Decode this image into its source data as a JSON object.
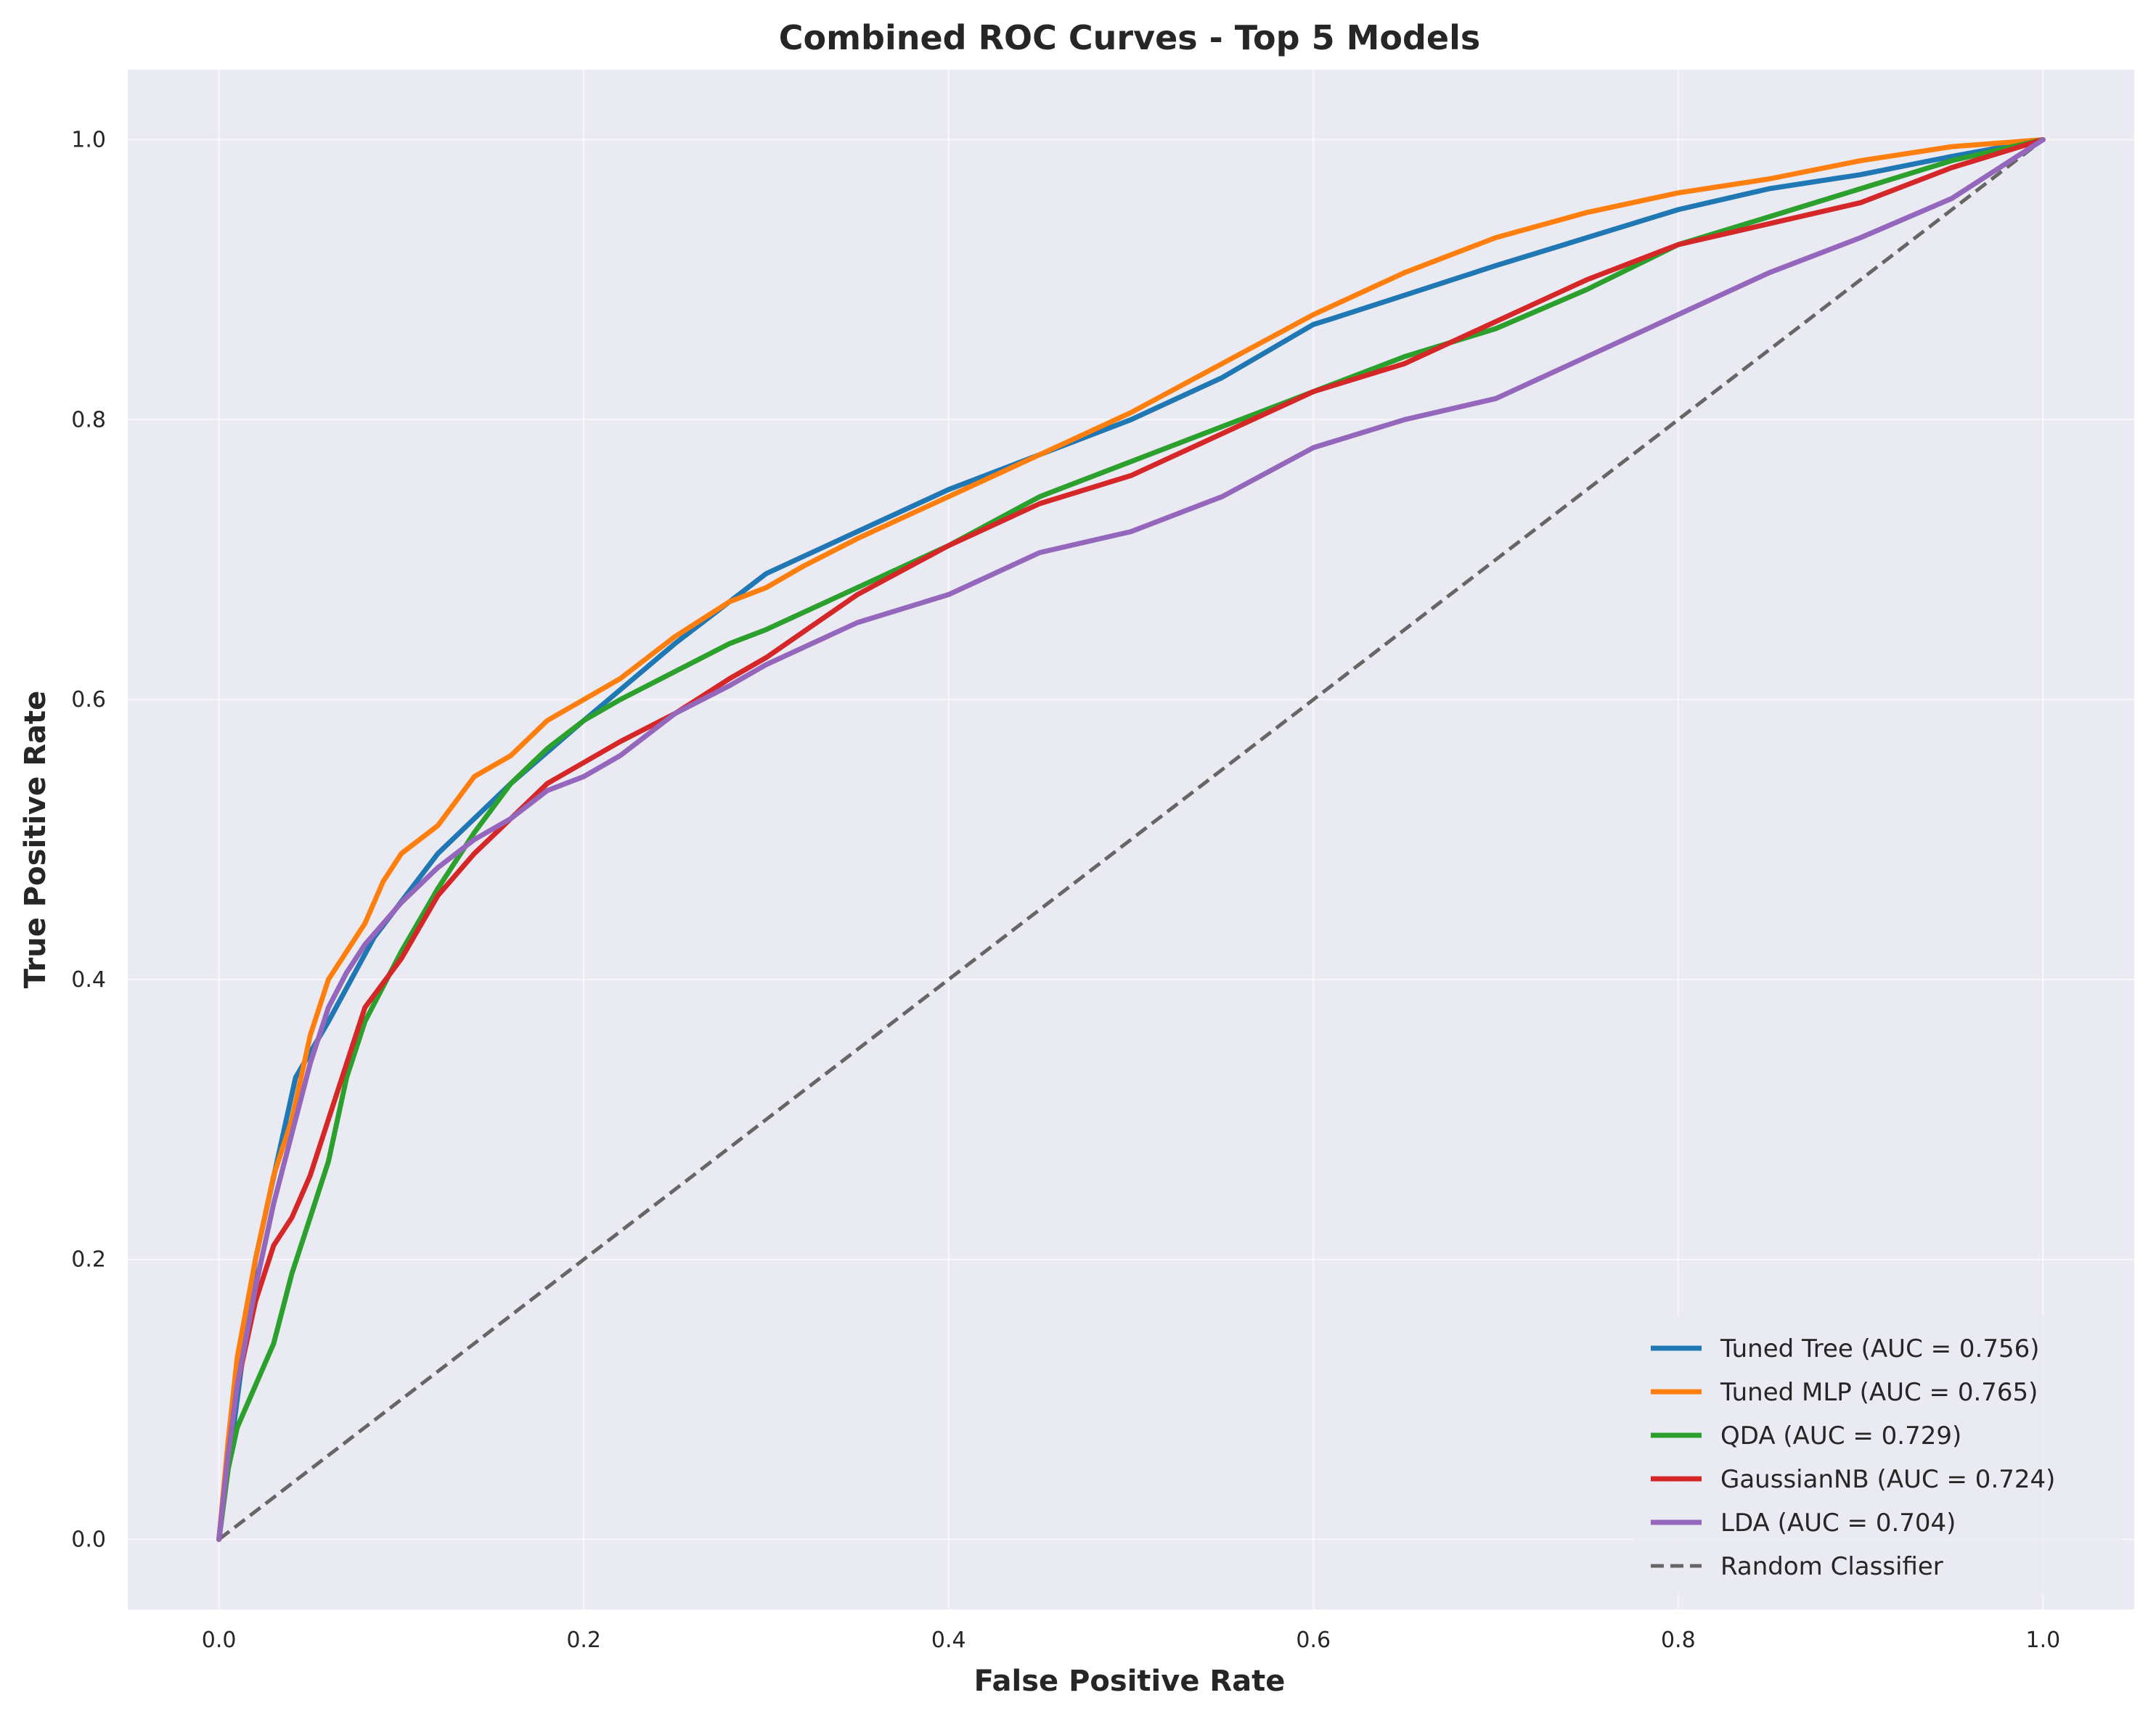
{
  "chart_data": {
    "type": "line",
    "title": "Combined ROC Curves - Top 5 Models",
    "xlabel": "False Positive Rate",
    "ylabel": "True Positive Rate",
    "xlim": [
      -0.05,
      1.05
    ],
    "ylim": [
      -0.05,
      1.05
    ],
    "xticks": [
      0.0,
      0.2,
      0.4,
      0.6,
      0.8,
      1.0
    ],
    "yticks": [
      0.0,
      0.2,
      0.4,
      0.6,
      0.8,
      1.0
    ],
    "xtick_labels": [
      "0.0",
      "0.2",
      "0.4",
      "0.6",
      "0.8",
      "1.0"
    ],
    "ytick_labels": [
      "0.0",
      "0.2",
      "0.4",
      "0.6",
      "0.8",
      "1.0"
    ],
    "grid": true,
    "legend_position": "lower-right",
    "background_color": "#eaeaf2",
    "series": [
      {
        "name": "Tuned Tree (AUC = 0.756)",
        "color": "#1f77b4",
        "style": "solid",
        "x": [
          0.0,
          0.02,
          0.042,
          0.06,
          0.085,
          0.12,
          0.16,
          0.2,
          0.25,
          0.3,
          0.325,
          0.35,
          0.4,
          0.45,
          0.5,
          0.55,
          0.6,
          0.61,
          0.7,
          0.8,
          0.85,
          0.9,
          0.95,
          1.0
        ],
        "y": [
          0.0,
          0.2,
          0.33,
          0.37,
          0.43,
          0.49,
          0.54,
          0.585,
          0.64,
          0.69,
          0.705,
          0.72,
          0.75,
          0.775,
          0.8,
          0.83,
          0.868,
          0.872,
          0.91,
          0.95,
          0.965,
          0.975,
          0.988,
          1.0
        ]
      },
      {
        "name": "Tuned MLP (AUC = 0.765)",
        "color": "#ff7f0e",
        "style": "solid",
        "x": [
          0.0,
          0.005,
          0.01,
          0.02,
          0.03,
          0.04,
          0.05,
          0.06,
          0.07,
          0.08,
          0.09,
          0.1,
          0.12,
          0.14,
          0.16,
          0.18,
          0.2,
          0.22,
          0.25,
          0.28,
          0.3,
          0.32,
          0.35,
          0.4,
          0.45,
          0.5,
          0.55,
          0.6,
          0.65,
          0.7,
          0.75,
          0.8,
          0.85,
          0.9,
          0.95,
          1.0
        ],
        "y": [
          0.0,
          0.07,
          0.13,
          0.2,
          0.26,
          0.3,
          0.36,
          0.4,
          0.42,
          0.44,
          0.47,
          0.49,
          0.51,
          0.545,
          0.56,
          0.585,
          0.6,
          0.615,
          0.645,
          0.67,
          0.68,
          0.695,
          0.715,
          0.745,
          0.775,
          0.805,
          0.84,
          0.875,
          0.905,
          0.93,
          0.948,
          0.962,
          0.972,
          0.985,
          0.995,
          1.0
        ]
      },
      {
        "name": "QDA (AUC = 0.729)",
        "color": "#2ca02c",
        "style": "solid",
        "x": [
          0.0,
          0.005,
          0.01,
          0.02,
          0.03,
          0.04,
          0.05,
          0.06,
          0.07,
          0.08,
          0.1,
          0.12,
          0.14,
          0.16,
          0.18,
          0.2,
          0.22,
          0.25,
          0.28,
          0.3,
          0.35,
          0.4,
          0.45,
          0.5,
          0.55,
          0.6,
          0.65,
          0.7,
          0.75,
          0.8,
          0.85,
          0.9,
          0.95,
          1.0
        ],
        "y": [
          0.0,
          0.05,
          0.08,
          0.11,
          0.14,
          0.19,
          0.23,
          0.27,
          0.33,
          0.37,
          0.42,
          0.465,
          0.505,
          0.54,
          0.565,
          0.585,
          0.6,
          0.62,
          0.64,
          0.65,
          0.68,
          0.71,
          0.745,
          0.77,
          0.795,
          0.82,
          0.845,
          0.865,
          0.893,
          0.925,
          0.945,
          0.965,
          0.985,
          1.0
        ]
      },
      {
        "name": "GaussianNB (AUC = 0.724)",
        "color": "#d62728",
        "style": "solid",
        "x": [
          0.0,
          0.005,
          0.01,
          0.02,
          0.03,
          0.04,
          0.05,
          0.06,
          0.07,
          0.08,
          0.1,
          0.12,
          0.14,
          0.16,
          0.18,
          0.2,
          0.22,
          0.25,
          0.28,
          0.3,
          0.35,
          0.4,
          0.45,
          0.5,
          0.55,
          0.6,
          0.65,
          0.7,
          0.75,
          0.8,
          0.85,
          0.9,
          0.95,
          1.0
        ],
        "y": [
          0.0,
          0.06,
          0.11,
          0.17,
          0.21,
          0.23,
          0.26,
          0.3,
          0.34,
          0.38,
          0.415,
          0.46,
          0.49,
          0.515,
          0.54,
          0.555,
          0.57,
          0.59,
          0.615,
          0.63,
          0.675,
          0.71,
          0.74,
          0.76,
          0.79,
          0.82,
          0.84,
          0.87,
          0.9,
          0.925,
          0.94,
          0.955,
          0.98,
          1.0
        ]
      },
      {
        "name": "LDA (AUC = 0.704)",
        "color": "#9467bd",
        "style": "solid",
        "x": [
          0.0,
          0.005,
          0.01,
          0.02,
          0.03,
          0.04,
          0.05,
          0.06,
          0.07,
          0.08,
          0.1,
          0.12,
          0.14,
          0.16,
          0.18,
          0.2,
          0.22,
          0.25,
          0.28,
          0.3,
          0.35,
          0.4,
          0.45,
          0.5,
          0.55,
          0.6,
          0.65,
          0.7,
          0.75,
          0.8,
          0.85,
          0.9,
          0.95,
          1.0
        ],
        "y": [
          0.0,
          0.06,
          0.11,
          0.18,
          0.24,
          0.29,
          0.34,
          0.38,
          0.405,
          0.425,
          0.455,
          0.48,
          0.5,
          0.515,
          0.535,
          0.545,
          0.56,
          0.59,
          0.61,
          0.625,
          0.655,
          0.675,
          0.705,
          0.72,
          0.745,
          0.78,
          0.8,
          0.815,
          0.845,
          0.875,
          0.905,
          0.93,
          0.958,
          1.0
        ]
      },
      {
        "name": "Random Classifier",
        "color": "#666666",
        "style": "dashed",
        "x": [
          0.0,
          1.0
        ],
        "y": [
          0.0,
          1.0
        ]
      }
    ]
  }
}
